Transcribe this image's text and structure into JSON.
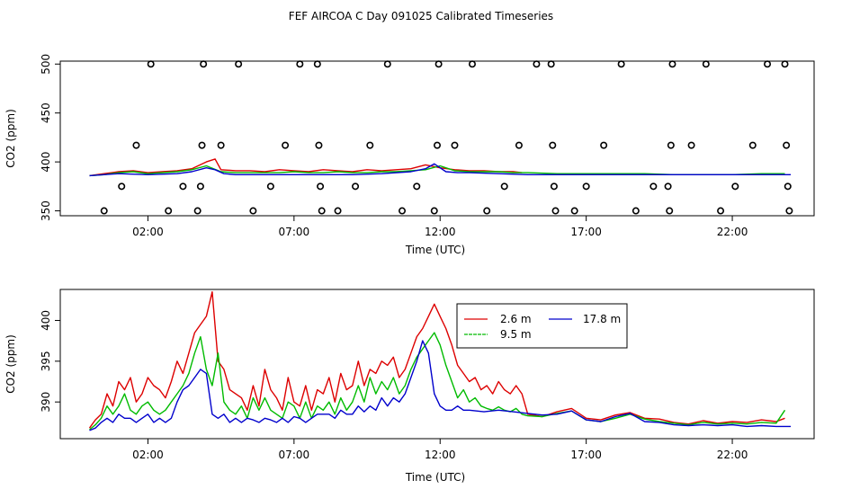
{
  "title": "FEF AIRCOA C  Day 091025  Calibrated Timeseries",
  "colors": {
    "s26": "#dd0000",
    "s95": "#00bb00",
    "s178": "#0000cc",
    "axis": "#000000"
  },
  "chart_data": [
    {
      "type": "scatter",
      "title": "",
      "xlabel": "Time (UTC)",
      "ylabel": "CO2 (ppm)",
      "xlim": [
        -1.0,
        24.8
      ],
      "ylim": [
        345,
        503
      ],
      "xticks": [
        2,
        7,
        12,
        17,
        22
      ],
      "xtick_labels": [
        "02:00",
        "07:00",
        "12:00",
        "17:00",
        "22:00"
      ],
      "yticks": [
        350,
        400,
        450,
        500
      ],
      "ytick_labels": [
        "350",
        "400",
        "450",
        "500"
      ],
      "grid": false,
      "points": [
        {
          "x": 0.5,
          "y": 350
        },
        {
          "x": 1.1,
          "y": 375
        },
        {
          "x": 1.6,
          "y": 417
        },
        {
          "x": 2.1,
          "y": 500
        },
        {
          "x": 2.7,
          "y": 350
        },
        {
          "x": 3.2,
          "y": 375
        },
        {
          "x": 3.7,
          "y": 350
        },
        {
          "x": 3.8,
          "y": 375
        },
        {
          "x": 3.85,
          "y": 417
        },
        {
          "x": 3.9,
          "y": 500
        },
        {
          "x": 4.5,
          "y": 417
        },
        {
          "x": 5.1,
          "y": 500
        },
        {
          "x": 5.6,
          "y": 350
        },
        {
          "x": 6.2,
          "y": 375
        },
        {
          "x": 6.7,
          "y": 417
        },
        {
          "x": 7.2,
          "y": 500
        },
        {
          "x": 7.8,
          "y": 500
        },
        {
          "x": 7.85,
          "y": 417
        },
        {
          "x": 7.9,
          "y": 375
        },
        {
          "x": 7.95,
          "y": 350
        },
        {
          "x": 8.5,
          "y": 350
        },
        {
          "x": 9.1,
          "y": 375
        },
        {
          "x": 9.6,
          "y": 417
        },
        {
          "x": 10.2,
          "y": 500
        },
        {
          "x": 10.7,
          "y": 350
        },
        {
          "x": 11.2,
          "y": 375
        },
        {
          "x": 11.8,
          "y": 350
        },
        {
          "x": 11.9,
          "y": 417
        },
        {
          "x": 11.95,
          "y": 500
        },
        {
          "x": 12.5,
          "y": 417
        },
        {
          "x": 13.1,
          "y": 500
        },
        {
          "x": 13.6,
          "y": 350
        },
        {
          "x": 14.2,
          "y": 375
        },
        {
          "x": 14.7,
          "y": 417
        },
        {
          "x": 15.3,
          "y": 500
        },
        {
          "x": 15.8,
          "y": 500
        },
        {
          "x": 15.85,
          "y": 417
        },
        {
          "x": 15.9,
          "y": 375
        },
        {
          "x": 15.95,
          "y": 350
        },
        {
          "x": 16.6,
          "y": 350
        },
        {
          "x": 17.0,
          "y": 375
        },
        {
          "x": 17.6,
          "y": 417
        },
        {
          "x": 18.2,
          "y": 500
        },
        {
          "x": 18.7,
          "y": 350
        },
        {
          "x": 19.3,
          "y": 375
        },
        {
          "x": 19.8,
          "y": 375
        },
        {
          "x": 19.85,
          "y": 350
        },
        {
          "x": 19.9,
          "y": 417
        },
        {
          "x": 19.95,
          "y": 500
        },
        {
          "x": 20.6,
          "y": 417
        },
        {
          "x": 21.1,
          "y": 500
        },
        {
          "x": 21.6,
          "y": 350
        },
        {
          "x": 22.1,
          "y": 375
        },
        {
          "x": 22.7,
          "y": 417
        },
        {
          "x": 23.2,
          "y": 500
        },
        {
          "x": 23.8,
          "y": 500
        },
        {
          "x": 23.85,
          "y": 417
        },
        {
          "x": 23.9,
          "y": 375
        },
        {
          "x": 23.95,
          "y": 350
        }
      ],
      "series": [
        {
          "color_key": "s26",
          "x": [
            0.0,
            0.5,
            1.0,
            1.5,
            2.0,
            2.5,
            3.0,
            3.5,
            4.0,
            4.3,
            4.5,
            5.0,
            5.5,
            6.0,
            6.5,
            7.0,
            7.5,
            8.0,
            8.5,
            9.0,
            9.5,
            10.0,
            10.5,
            11.0,
            11.5,
            12.0,
            12.5,
            13.0,
            13.5,
            14.0,
            14.5,
            14.8
          ],
          "values": [
            386,
            388,
            390,
            391,
            389,
            390,
            391,
            393,
            400,
            403,
            392,
            391,
            391,
            390,
            392,
            391,
            390,
            392,
            391,
            390,
            392,
            391,
            392,
            393,
            397,
            394,
            392,
            391,
            391,
            390,
            390,
            389
          ]
        },
        {
          "color_key": "s95",
          "x": [
            0.0,
            0.5,
            1.0,
            1.5,
            2.0,
            2.5,
            3.0,
            3.5,
            4.0,
            4.5,
            5.0,
            5.5,
            6.0,
            6.5,
            7.0,
            7.5,
            8.0,
            8.5,
            9.0,
            9.5,
            10.0,
            10.5,
            11.0,
            11.5,
            12.0,
            12.5,
            13.0,
            13.5,
            14.0,
            14.5,
            15.0,
            16.0,
            17.0,
            18.0,
            19.0,
            20.0,
            21.0,
            22.0,
            23.0,
            23.8
          ],
          "values": [
            386,
            387,
            389,
            390,
            388,
            389,
            390,
            392,
            396,
            390,
            389,
            389,
            389,
            389,
            390,
            389,
            389,
            390,
            389,
            389,
            390,
            390,
            391,
            392,
            396,
            391,
            390,
            390,
            390,
            389,
            389,
            388,
            388,
            388,
            388,
            387,
            387,
            387,
            388,
            388
          ]
        },
        {
          "color_key": "s178",
          "x": [
            0.0,
            1.0,
            2.0,
            3.0,
            3.5,
            4.0,
            4.3,
            4.6,
            5.0,
            6.0,
            7.0,
            8.0,
            9.0,
            10.0,
            11.0,
            11.5,
            11.8,
            12.2,
            12.6,
            13.0,
            14.0,
            15.0,
            16.0,
            17.0,
            18.0,
            19.0,
            20.0,
            21.0,
            22.0,
            23.0,
            24.0
          ],
          "values": [
            386,
            388,
            387,
            388,
            390,
            394,
            392,
            388,
            387,
            387,
            387,
            387,
            387,
            388,
            390,
            393,
            398,
            390,
            389,
            389,
            388,
            387,
            387,
            387,
            387,
            387,
            387,
            387,
            387,
            387,
            387
          ]
        }
      ]
    },
    {
      "type": "line",
      "title": "",
      "xlabel": "Time (UTC)",
      "ylabel": "CO2 (ppm)",
      "xlim": [
        -1.0,
        24.8
      ],
      "ylim": [
        385.5,
        403.8
      ],
      "xticks": [
        2,
        7,
        12,
        17,
        22
      ],
      "xtick_labels": [
        "02:00",
        "07:00",
        "12:00",
        "17:00",
        "22:00"
      ],
      "yticks": [
        390,
        395,
        400
      ],
      "ytick_labels": [
        "390",
        "395",
        "400"
      ],
      "grid": false,
      "legend": {
        "placement": "top-center",
        "entries": [
          {
            "label": "2.6 m",
            "color_key": "s26"
          },
          {
            "label": "17.8 m",
            "color_key": "s178"
          },
          {
            "label": "9.5 m",
            "color_key": "s95"
          }
        ]
      },
      "series": [
        {
          "name": "2.6 m",
          "color_key": "s26",
          "x": [
            0.0,
            0.2,
            0.4,
            0.6,
            0.8,
            1.0,
            1.2,
            1.4,
            1.6,
            1.8,
            2.0,
            2.2,
            2.4,
            2.6,
            2.8,
            3.0,
            3.2,
            3.4,
            3.6,
            3.8,
            4.0,
            4.2,
            4.4,
            4.6,
            4.8,
            5.0,
            5.2,
            5.4,
            5.6,
            5.8,
            6.0,
            6.2,
            6.4,
            6.6,
            6.8,
            7.0,
            7.2,
            7.4,
            7.6,
            7.8,
            8.0,
            8.2,
            8.4,
            8.6,
            8.8,
            9.0,
            9.2,
            9.4,
            9.6,
            9.8,
            10.0,
            10.2,
            10.4,
            10.6,
            10.8,
            11.0,
            11.2,
            11.4,
            11.6,
            11.8,
            12.0,
            12.2,
            12.4,
            12.6,
            12.8,
            13.0,
            13.2,
            13.4,
            13.6,
            13.8,
            14.0,
            14.2,
            14.4,
            14.6,
            14.8,
            15.0,
            15.5,
            16.0,
            16.5,
            17.0,
            17.5,
            18.0,
            18.5,
            19.0,
            19.5,
            20.0,
            20.5,
            21.0,
            21.5,
            22.0,
            22.5,
            23.0,
            23.5,
            23.8
          ],
          "values": [
            386.8,
            387.8,
            388.5,
            391.0,
            389.5,
            392.5,
            391.5,
            393.0,
            390.0,
            391.0,
            393.0,
            392.0,
            391.5,
            390.5,
            392.5,
            395.0,
            393.5,
            396.0,
            398.5,
            399.5,
            400.5,
            403.5,
            395.0,
            394.0,
            391.5,
            391.0,
            390.5,
            389.0,
            392.0,
            389.5,
            394.0,
            391.5,
            390.5,
            389.0,
            393.0,
            390.0,
            389.5,
            392.0,
            389.0,
            391.5,
            391.0,
            393.0,
            390.0,
            393.5,
            391.5,
            392.0,
            395.0,
            392.0,
            394.0,
            393.5,
            395.0,
            394.5,
            395.5,
            393.0,
            394.0,
            396.0,
            398.0,
            399.0,
            400.5,
            402.0,
            400.5,
            399.0,
            397.0,
            394.5,
            393.5,
            392.5,
            393.0,
            391.5,
            392.0,
            391.0,
            392.5,
            391.5,
            391.0,
            392.0,
            391.0,
            388.5,
            388.2,
            388.8,
            389.2,
            388.0,
            387.8,
            388.4,
            388.7,
            388.0,
            387.9,
            387.5,
            387.3,
            387.7,
            387.4,
            387.6,
            387.5,
            387.8,
            387.6,
            388.0
          ]
        },
        {
          "name": "9.5 m",
          "color_key": "s95",
          "x": [
            0.0,
            0.2,
            0.4,
            0.6,
            0.8,
            1.0,
            1.2,
            1.4,
            1.6,
            1.8,
            2.0,
            2.2,
            2.4,
            2.6,
            2.8,
            3.0,
            3.2,
            3.4,
            3.6,
            3.8,
            4.0,
            4.2,
            4.4,
            4.6,
            4.8,
            5.0,
            5.2,
            5.4,
            5.6,
            5.8,
            6.0,
            6.2,
            6.4,
            6.6,
            6.8,
            7.0,
            7.2,
            7.4,
            7.6,
            7.8,
            8.0,
            8.2,
            8.4,
            8.6,
            8.8,
            9.0,
            9.2,
            9.4,
            9.6,
            9.8,
            10.0,
            10.2,
            10.4,
            10.6,
            10.8,
            11.0,
            11.2,
            11.4,
            11.6,
            11.8,
            12.0,
            12.2,
            12.4,
            12.6,
            12.8,
            13.0,
            13.2,
            13.4,
            13.6,
            13.8,
            14.0,
            14.2,
            14.4,
            14.6,
            14.8,
            15.0,
            15.5,
            16.0,
            16.5,
            17.0,
            17.5,
            18.0,
            18.5,
            19.0,
            19.5,
            20.0,
            20.5,
            21.0,
            21.5,
            22.0,
            22.5,
            23.0,
            23.5,
            23.8
          ],
          "values": [
            386.6,
            387.2,
            388.0,
            389.5,
            388.5,
            389.5,
            391.0,
            389.0,
            388.5,
            389.5,
            390.0,
            389.0,
            388.5,
            389.0,
            390.0,
            391.0,
            392.0,
            393.5,
            396.0,
            398.0,
            394.0,
            392.0,
            396.0,
            390.0,
            389.0,
            388.5,
            389.5,
            388.0,
            390.5,
            389.0,
            390.5,
            389.0,
            388.5,
            388.0,
            390.0,
            389.5,
            388.0,
            390.0,
            388.0,
            389.5,
            389.0,
            390.0,
            388.5,
            390.5,
            389.0,
            390.0,
            392.0,
            390.0,
            393.0,
            391.0,
            392.5,
            391.5,
            393.0,
            391.0,
            392.0,
            394.0,
            395.5,
            396.5,
            397.5,
            398.5,
            397.0,
            394.5,
            392.5,
            390.5,
            391.5,
            390.0,
            390.5,
            389.5,
            389.2,
            389.0,
            389.4,
            389.0,
            388.8,
            389.2,
            388.5,
            388.3,
            388.2,
            388.6,
            388.9,
            387.8,
            387.6,
            388.0,
            388.5,
            387.9,
            387.6,
            387.4,
            387.2,
            387.5,
            387.3,
            387.4,
            387.3,
            387.5,
            387.4,
            389.0
          ]
        },
        {
          "name": "17.8 m",
          "color_key": "s178",
          "x": [
            0.0,
            0.2,
            0.4,
            0.6,
            0.8,
            1.0,
            1.2,
            1.4,
            1.6,
            1.8,
            2.0,
            2.2,
            2.4,
            2.6,
            2.8,
            3.0,
            3.2,
            3.4,
            3.6,
            3.8,
            4.0,
            4.2,
            4.4,
            4.6,
            4.8,
            5.0,
            5.2,
            5.4,
            5.6,
            5.8,
            6.0,
            6.2,
            6.4,
            6.6,
            6.8,
            7.0,
            7.2,
            7.4,
            7.6,
            7.8,
            8.0,
            8.2,
            8.4,
            8.6,
            8.8,
            9.0,
            9.2,
            9.4,
            9.6,
            9.8,
            10.0,
            10.2,
            10.4,
            10.6,
            10.8,
            11.0,
            11.2,
            11.4,
            11.6,
            11.8,
            12.0,
            12.2,
            12.4,
            12.6,
            12.8,
            13.0,
            13.5,
            14.0,
            14.5,
            15.0,
            15.5,
            16.0,
            16.5,
            17.0,
            17.5,
            18.0,
            18.5,
            19.0,
            19.5,
            20.0,
            20.5,
            21.0,
            21.5,
            22.0,
            22.5,
            23.0,
            23.5,
            24.0
          ],
          "values": [
            386.5,
            386.8,
            387.5,
            388.0,
            387.5,
            388.5,
            388.0,
            388.0,
            387.5,
            388.0,
            388.5,
            387.5,
            388.0,
            387.5,
            388.0,
            390.0,
            391.5,
            392.0,
            393.0,
            394.0,
            393.5,
            388.5,
            388.0,
            388.5,
            387.5,
            388.0,
            387.5,
            388.0,
            387.8,
            387.5,
            388.0,
            387.8,
            387.5,
            388.0,
            387.5,
            388.2,
            388.0,
            387.5,
            388.0,
            388.5,
            388.5,
            388.5,
            388.0,
            389.0,
            388.5,
            388.5,
            389.5,
            388.8,
            389.5,
            389.0,
            390.5,
            389.5,
            390.5,
            390.0,
            391.0,
            393.0,
            395.0,
            397.5,
            396.0,
            391.0,
            389.5,
            389.0,
            389.0,
            389.5,
            389.0,
            389.0,
            388.8,
            389.0,
            388.8,
            388.6,
            388.4,
            388.5,
            388.9,
            387.8,
            387.6,
            388.2,
            388.6,
            387.6,
            387.5,
            387.2,
            387.1,
            387.2,
            387.1,
            387.2,
            387.0,
            387.1,
            387.0,
            387.0
          ]
        }
      ]
    }
  ]
}
